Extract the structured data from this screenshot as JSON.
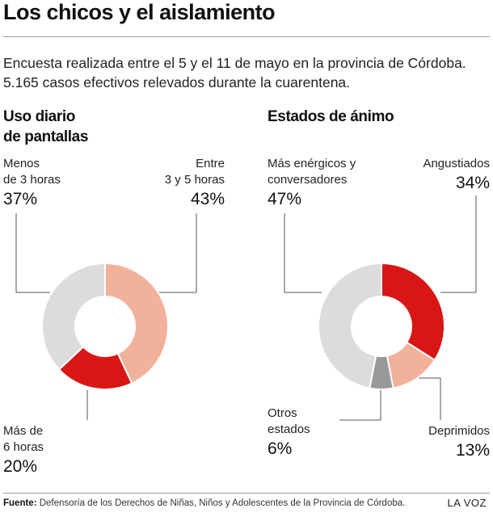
{
  "title": "Los chicos y el aislamiento",
  "intro": [
    "Encuesta realizada entre el 5 y el 11 de mayo en la provincia de Córdoba.",
    "5.165 casos efectivos relevados durante la cuarentena."
  ],
  "chart_data": [
    {
      "type": "pie",
      "title": [
        "Uso diario",
        "de pantallas"
      ],
      "slices": [
        {
          "label": [
            "Entre",
            "3 y 5 horas"
          ],
          "value": 43,
          "display": "43%",
          "color": "#f2b19a"
        },
        {
          "label": [
            "Más de",
            "6 horas"
          ],
          "value": 20,
          "display": "20%",
          "color": "#d91616"
        },
        {
          "label": [
            "Menos",
            "de 3 horas"
          ],
          "value": 37,
          "display": "37%",
          "color": "#dcdcdc"
        }
      ]
    },
    {
      "type": "pie",
      "title": [
        "Estados de ánimo"
      ],
      "slices": [
        {
          "label": [
            "Angustiados"
          ],
          "value": 34,
          "display": "34%",
          "color": "#d91616"
        },
        {
          "label": [
            "Deprimidos"
          ],
          "value": 13,
          "display": "13%",
          "color": "#f2b19a"
        },
        {
          "label": [
            "Otros",
            "estados"
          ],
          "value": 6,
          "display": "6%",
          "color": "#999999"
        },
        {
          "label": [
            "Más enérgicos y",
            "conversadores"
          ],
          "value": 47,
          "display": "47%",
          "color": "#dcdcdc"
        }
      ]
    }
  ],
  "footer": {
    "source_label": "Fuente:",
    "source_text": "Defensoría de los Derechos de Niñas, Niños y Adolescentes de la Provincia de Córdoba.",
    "brand": "LA VOZ"
  }
}
